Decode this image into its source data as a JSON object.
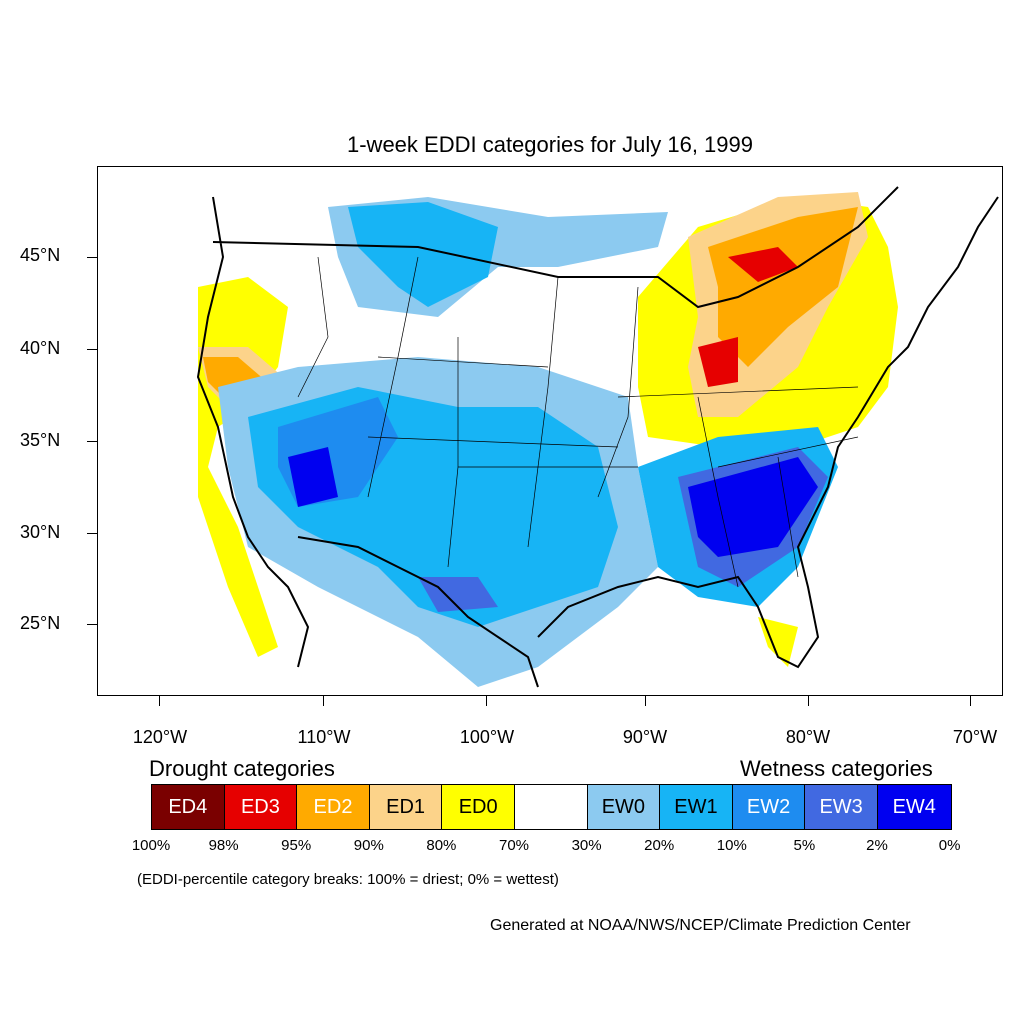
{
  "title": "1-week EDDI categories for July 16, 1999",
  "axes": {
    "lat_labels": [
      "45°N",
      "40°N",
      "35°N",
      "30°N",
      "25°N"
    ],
    "lon_labels": [
      "120°W",
      "110°W",
      "100°W",
      "90°W",
      "80°W",
      "70°W"
    ]
  },
  "legend": {
    "drought_heading": "Drought categories",
    "wetness_heading": "Wetness categories",
    "categories": [
      {
        "label": "ED4",
        "color": "#7a0000",
        "text_color": "#ffffff"
      },
      {
        "label": "ED3",
        "color": "#e60000",
        "text_color": "#ffffff"
      },
      {
        "label": "ED2",
        "color": "#ffaa00",
        "text_color": "#ffffff"
      },
      {
        "label": "ED1",
        "color": "#fcd38a",
        "text_color": "#000000"
      },
      {
        "label": "ED0",
        "color": "#ffff00",
        "text_color": "#000000"
      },
      {
        "label": "",
        "color": "#ffffff",
        "text_color": "#000000"
      },
      {
        "label": "EW0",
        "color": "#8ccaf0",
        "text_color": "#000000"
      },
      {
        "label": "EW1",
        "color": "#17b4f5",
        "text_color": "#000000"
      },
      {
        "label": "EW2",
        "color": "#1e8cf0",
        "text_color": "#ffffff"
      },
      {
        "label": "EW3",
        "color": "#4169e1",
        "text_color": "#ffffff"
      },
      {
        "label": "EW4",
        "color": "#0000f0",
        "text_color": "#ffffff"
      }
    ],
    "breaks": [
      "100%",
      "98%",
      "95%",
      "90%",
      "80%",
      "70%",
      "30%",
      "20%",
      "10%",
      "5%",
      "2%",
      "0%"
    ]
  },
  "note": "(EDDI-percentile category breaks: 100% = driest; 0% = wettest)",
  "credit": "Generated at NOAA/NWS/NCEP/Climate Prediction Center"
}
